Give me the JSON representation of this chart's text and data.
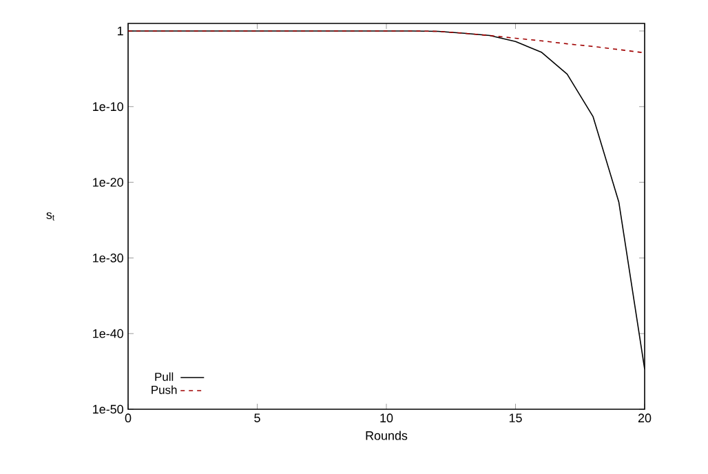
{
  "chart_data": {
    "type": "line",
    "xlabel": "Rounds",
    "ylabel": "s$_{t}$",
    "x": [
      0,
      1,
      2,
      3,
      4,
      5,
      6,
      7,
      8,
      9,
      10,
      11,
      12,
      13,
      14,
      15,
      16,
      17,
      18,
      19,
      20
    ],
    "series": [
      {
        "name": "Pull",
        "color": "#000000",
        "line_style": "solid",
        "values": [
          1,
          1,
          1,
          1,
          1,
          1,
          1,
          1,
          1,
          1,
          1,
          1,
          0.9,
          0.5,
          0.25,
          0.04,
          0.0016,
          2e-06,
          5e-12,
          2.5e-23,
          2e-45
        ]
      },
      {
        "name": "Push",
        "color": "#a00000",
        "line_style": "dashed",
        "values": [
          1,
          1,
          1,
          1,
          1,
          1,
          1,
          1,
          1,
          1,
          1,
          1,
          0.9,
          0.5,
          0.25,
          0.11,
          0.05,
          0.02,
          0.009,
          0.0035,
          0.0013
        ]
      }
    ],
    "log": "y",
    "xlim": [
      0,
      20
    ],
    "ylim": [
      1e-50,
      10
    ],
    "xticks": [
      0,
      5,
      10,
      15,
      20
    ],
    "yticks": [
      1,
      {
        "value": 1e-10,
        "label": "1e-10"
      },
      {
        "value": 1e-20,
        "label": "1e-20"
      },
      {
        "value": 1e-30,
        "label": "1e-30"
      },
      {
        "value": 1e-40,
        "label": "1e-40"
      },
      {
        "value": 1e-50,
        "label": "1e-50"
      }
    ],
    "grid": false,
    "legend": "bottom left",
    "marker": "none"
  }
}
